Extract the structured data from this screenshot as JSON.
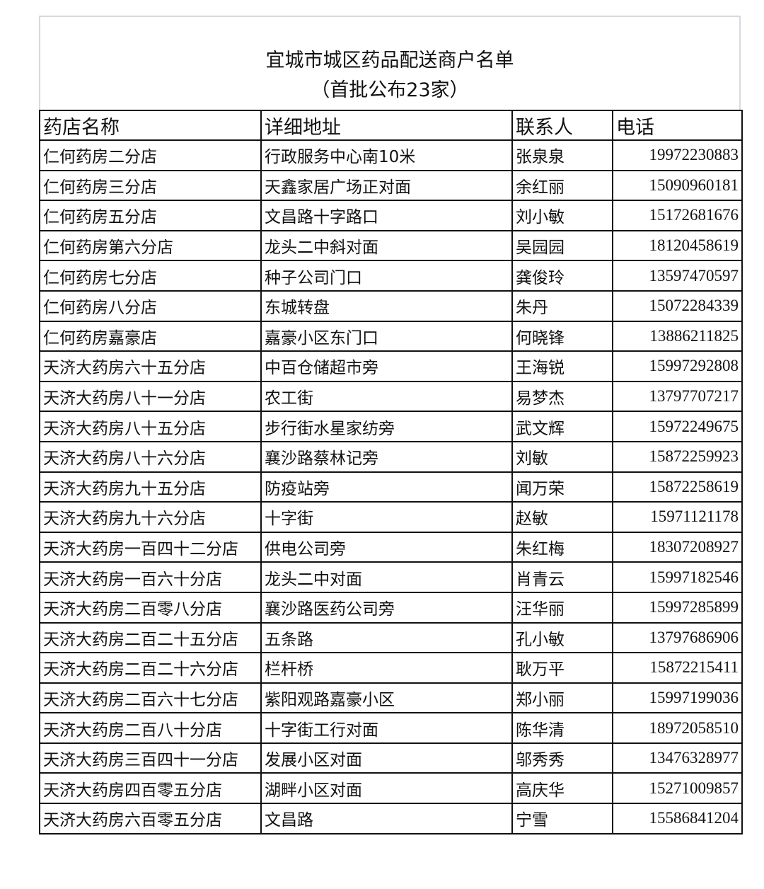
{
  "title": {
    "line1": "宜城市城区药品配送商户名单",
    "line2": "（首批公布23家）"
  },
  "table": {
    "headers": [
      "药店名称",
      "详细地址",
      "联系人",
      "电话"
    ],
    "rows": [
      [
        "仁何药房二分店",
        "行政服务中心南10米",
        "张泉泉",
        "19972230883"
      ],
      [
        "仁何药房三分店",
        "天鑫家居广场正对面",
        "余红丽",
        "15090960181"
      ],
      [
        "仁何药房五分店",
        "文昌路十字路口",
        "刘小敏",
        "15172681676"
      ],
      [
        "仁何药房第六分店",
        "龙头二中斜对面",
        "吴园园",
        "18120458619"
      ],
      [
        "仁何药房七分店",
        "种子公司门口",
        "龚俊玲",
        "13597470597"
      ],
      [
        "仁何药房八分店",
        "东城转盘",
        "朱丹",
        "15072284339"
      ],
      [
        "仁何药房嘉豪店",
        "嘉豪小区东门口",
        "何晓锋",
        "13886211825"
      ],
      [
        "天济大药房六十五分店",
        "中百仓储超市旁",
        "王海锐",
        "15997292808"
      ],
      [
        "天济大药房八十一分店",
        "农工街",
        "易梦杰",
        "13797707217"
      ],
      [
        "天济大药房八十五分店",
        "步行街水星家纺旁",
        "武文辉",
        "15972249675"
      ],
      [
        "天济大药房八十六分店",
        "襄沙路蔡林记旁",
        "刘敏",
        "15872259923"
      ],
      [
        "天济大药房九十五分店",
        "防疫站旁",
        "闻万荣",
        "15872258619"
      ],
      [
        "天济大药房九十六分店",
        "十字街",
        "赵敏",
        "15971121178"
      ],
      [
        "天济大药房一百四十二分店",
        "供电公司旁",
        "朱红梅",
        "18307208927"
      ],
      [
        "天济大药房一百六十分店",
        "龙头二中对面",
        "肖青云",
        "15997182546"
      ],
      [
        "天济大药房二百零八分店",
        "襄沙路医药公司旁",
        "汪华丽",
        "15997285899"
      ],
      [
        "天济大药房二百二十五分店",
        "五条路",
        "孔小敏",
        "13797686906"
      ],
      [
        "天济大药房二百二十六分店",
        "栏杆桥",
        "耿万平",
        "15872215411"
      ],
      [
        "天济大药房二百六十七分店",
        "紫阳观路嘉豪小区",
        "郑小丽",
        "15997199036"
      ],
      [
        "天济大药房二百八十分店",
        "十字街工行对面",
        "陈华清",
        "18972058510"
      ],
      [
        "天济大药房三百四十一分店",
        "发展小区对面",
        " 邬秀秀",
        "13476328977"
      ],
      [
        "天济大药房四百零五分店",
        "湖畔小区对面",
        "高庆华",
        "15271009857"
      ],
      [
        "天济大药房六百零五分店",
        "文昌路",
        "宁雪",
        "15586841204"
      ]
    ]
  }
}
